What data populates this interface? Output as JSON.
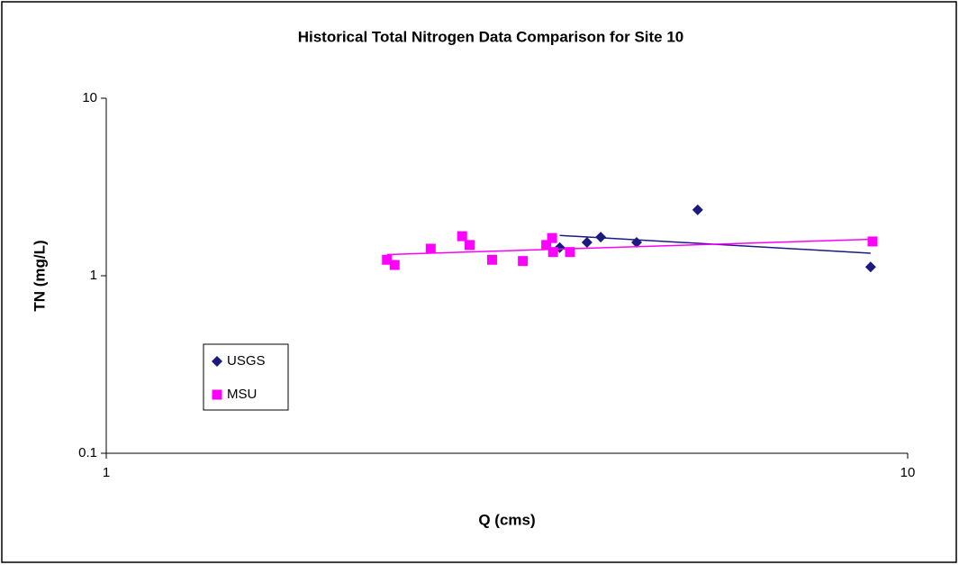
{
  "chart_data": {
    "type": "scatter",
    "title": "Historical Total Nitrogen Data Comparison for Site 10",
    "x_label": "Q (cms)",
    "y_label": "TN (mg/L)",
    "x_scale": "log",
    "y_scale": "log",
    "xlim": [
      1,
      10
    ],
    "xticks": [
      1,
      10
    ],
    "ylim": [
      0.1,
      10
    ],
    "yticks": [
      0.1,
      1,
      10
    ],
    "grid": false,
    "legend": "left",
    "trendline": "power",
    "series": [
      {
        "name": "USGS",
        "color": "#1a1a80",
        "marker": "diamond",
        "x": [
          3.68,
          3.98,
          4.14,
          4.59,
          5.47,
          8.99
        ],
        "values": [
          1.44,
          1.54,
          1.65,
          1.54,
          2.35,
          1.12
        ]
      },
      {
        "name": "MSU",
        "color": "#ff00ff",
        "marker": "square",
        "x": [
          2.24,
          2.29,
          2.54,
          2.78,
          2.84,
          3.03,
          3.31,
          3.54,
          3.6,
          3.61,
          3.79,
          9.04
        ],
        "values": [
          1.23,
          1.15,
          1.42,
          1.67,
          1.49,
          1.23,
          1.21,
          1.49,
          1.63,
          1.36,
          1.36,
          1.56
        ]
      }
    ]
  }
}
